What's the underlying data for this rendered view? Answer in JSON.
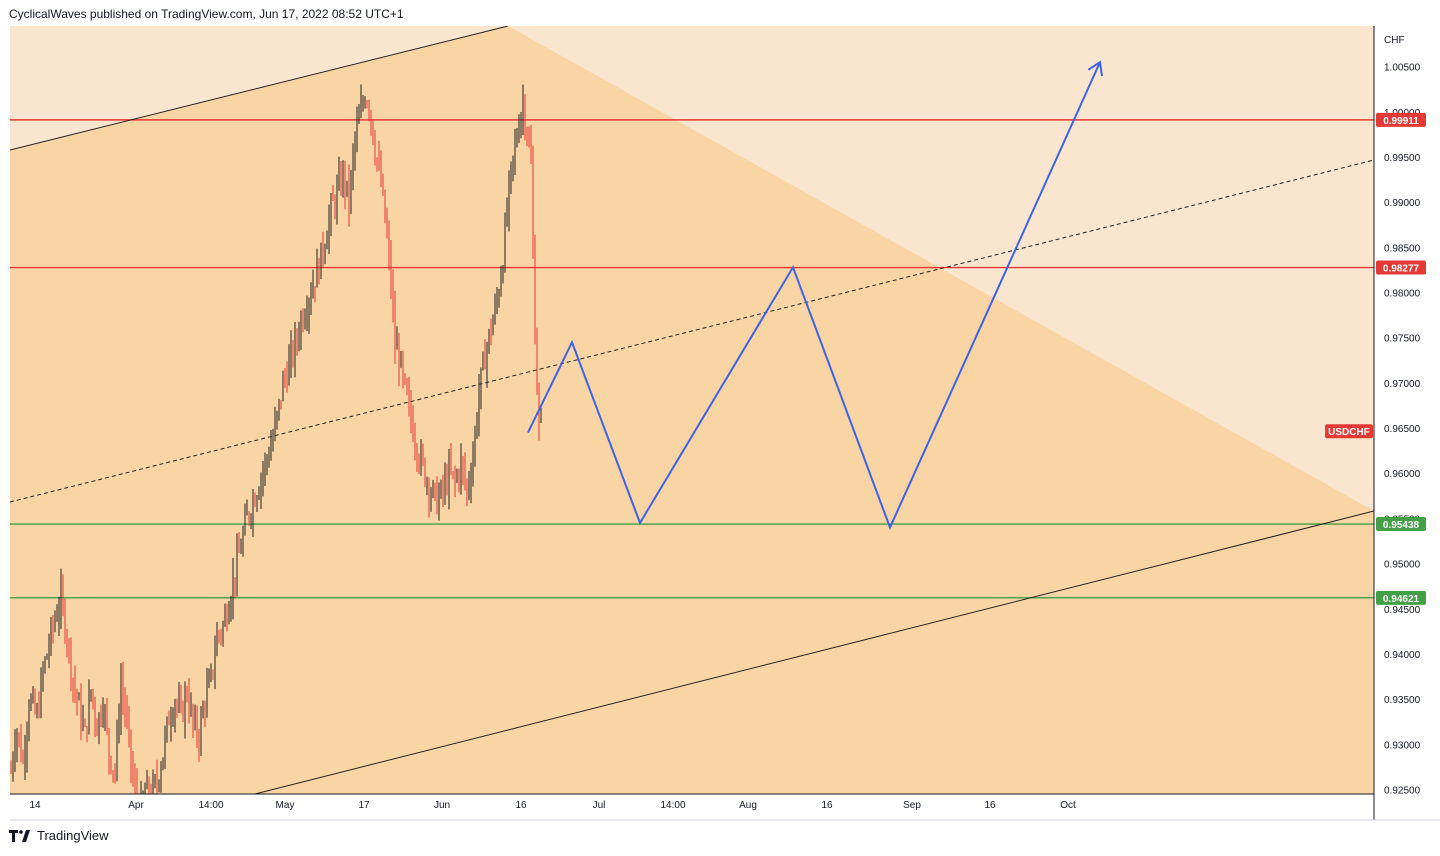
{
  "header": {
    "attribution": "CyclicalWaves published on TradingView.com, Jun 17, 2022 08:52 UTC+1"
  },
  "footer": {
    "brand": "TradingView",
    "logo_icon": "tradingview-logo-icon"
  },
  "colors": {
    "channel_fill": "#f9d4a4",
    "outside_fill": "#fae5cf",
    "resistance": "#e53935",
    "support": "#43a047",
    "projection": "#3d64e6",
    "candle_up": "#222222",
    "candle_down": "#e53935"
  },
  "chart_data": {
    "type": "candlestick",
    "symbol": "USDCHF",
    "currency": "CHF",
    "ylim": [
      0.9245,
      1.0095
    ],
    "x_tick_labels": [
      "14",
      "Apr",
      "14:00",
      "May",
      "17",
      "Jun",
      "16",
      "Jul",
      "14:00",
      "Aug",
      "16",
      "Sep",
      "16",
      "Oct"
    ],
    "y_tick_labels": [
      "1.00500",
      "1.00000",
      "0.99500",
      "0.99000",
      "0.98500",
      "0.98000",
      "0.97500",
      "0.97000",
      "0.96500",
      "0.96000",
      "0.95500",
      "0.95000",
      "0.94500",
      "0.94000",
      "0.93500",
      "0.93000",
      "0.92500"
    ],
    "y_tick_values": [
      1.005,
      1.0,
      0.995,
      0.99,
      0.985,
      0.98,
      0.975,
      0.97,
      0.965,
      0.96,
      0.955,
      0.95,
      0.945,
      0.94,
      0.935,
      0.93,
      0.925
    ],
    "horizontal_levels": [
      {
        "label": "0.99911",
        "value": 0.99911,
        "kind": "resistance"
      },
      {
        "label": "0.98277",
        "value": 0.98277,
        "kind": "resistance"
      },
      {
        "label": "0.95438",
        "value": 0.95438,
        "kind": "support"
      },
      {
        "label": "0.94621",
        "value": 0.94621,
        "kind": "support"
      }
    ],
    "last_price_tag": "USDCHF",
    "price_path": [
      [
        0,
        0.927
      ],
      [
        5,
        0.932
      ],
      [
        12,
        0.928
      ],
      [
        18,
        0.935
      ],
      [
        26,
        0.933
      ],
      [
        32,
        0.938
      ],
      [
        38,
        0.941
      ],
      [
        44,
        0.944
      ],
      [
        50,
        0.946
      ],
      [
        56,
        0.942
      ],
      [
        62,
        0.937
      ],
      [
        68,
        0.934
      ],
      [
        74,
        0.931
      ],
      [
        80,
        0.936
      ],
      [
        86,
        0.932
      ],
      [
        92,
        0.935
      ],
      [
        98,
        0.929
      ],
      [
        104,
        0.927
      ],
      [
        110,
        0.937
      ],
      [
        116,
        0.932
      ],
      [
        122,
        0.926
      ],
      [
        128,
        0.922
      ],
      [
        134,
        0.925
      ],
      [
        140,
        0.924
      ],
      [
        146,
        0.926
      ],
      [
        152,
        0.929
      ],
      [
        158,
        0.933
      ],
      [
        164,
        0.935
      ],
      [
        170,
        0.933
      ],
      [
        176,
        0.936
      ],
      [
        182,
        0.932
      ],
      [
        188,
        0.931
      ],
      [
        194,
        0.935
      ],
      [
        200,
        0.937
      ],
      [
        206,
        0.942
      ],
      [
        212,
        0.943
      ],
      [
        218,
        0.946
      ],
      [
        224,
        0.949
      ],
      [
        230,
        0.952
      ],
      [
        236,
        0.955
      ],
      [
        242,
        0.957
      ],
      [
        248,
        0.959
      ],
      [
        254,
        0.961
      ],
      [
        260,
        0.963
      ],
      [
        266,
        0.966
      ],
      [
        272,
        0.97
      ],
      [
        278,
        0.972
      ],
      [
        284,
        0.974
      ],
      [
        290,
        0.977
      ],
      [
        296,
        0.979
      ],
      [
        302,
        0.981
      ],
      [
        308,
        0.983
      ],
      [
        314,
        0.986
      ],
      [
        320,
        0.989
      ],
      [
        326,
        0.991
      ],
      [
        332,
        0.993
      ],
      [
        338,
        0.99
      ],
      [
        344,
        0.997
      ],
      [
        350,
        1.0
      ],
      [
        354,
        1.002
      ],
      [
        358,
        1.001
      ],
      [
        364,
        0.996
      ],
      [
        370,
        0.992
      ],
      [
        376,
        0.986
      ],
      [
        380,
        0.981
      ],
      [
        384,
        0.974
      ],
      [
        388,
        0.973
      ],
      [
        392,
        0.97
      ],
      [
        396,
        0.968
      ],
      [
        402,
        0.965
      ],
      [
        408,
        0.962
      ],
      [
        414,
        0.96
      ],
      [
        420,
        0.958
      ],
      [
        426,
        0.957
      ],
      [
        432,
        0.958
      ],
      [
        438,
        0.96
      ],
      [
        444,
        0.959
      ],
      [
        450,
        0.961
      ],
      [
        456,
        0.958
      ],
      [
        462,
        0.962
      ],
      [
        468,
        0.969
      ],
      [
        474,
        0.973
      ],
      [
        480,
        0.976
      ],
      [
        486,
        0.979
      ],
      [
        492,
        0.984
      ],
      [
        496,
        0.989
      ],
      [
        500,
        0.993
      ],
      [
        504,
        0.996
      ],
      [
        508,
        0.999
      ],
      [
        512,
        1.001
      ],
      [
        516,
        0.998
      ],
      [
        520,
        0.994
      ],
      [
        523,
        0.98
      ],
      [
        525,
        0.972
      ],
      [
        528,
        0.965
      ],
      [
        530,
        0.9655
      ]
    ],
    "projection_path": [
      [
        0.9645,
        "Jun 17"
      ],
      [
        0.9745,
        "Jun 24"
      ],
      [
        0.9545,
        "Jul 6"
      ],
      [
        0.9828,
        "Aug 9"
      ],
      [
        0.954,
        "Aug 26"
      ],
      [
        1.0055,
        "Oct 2"
      ]
    ]
  }
}
